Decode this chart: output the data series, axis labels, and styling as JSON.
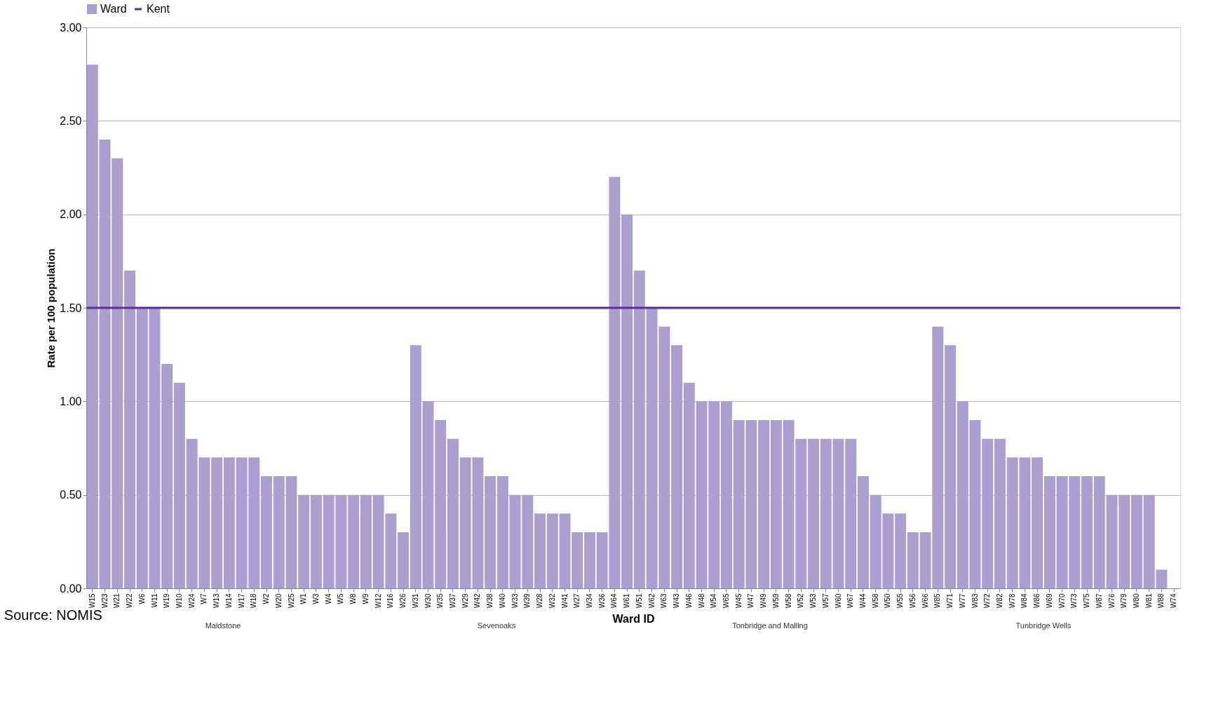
{
  "chart_data": {
    "type": "bar",
    "xlabel": "Ward ID",
    "ylabel": "Rate per 100 population",
    "categories": [
      "W15",
      "W23",
      "W21",
      "W22",
      "W6",
      "W11",
      "W19",
      "W10",
      "W24",
      "W7",
      "W13",
      "W14",
      "W17",
      "W18",
      "W2",
      "W20",
      "W25",
      "W1",
      "W3",
      "W4",
      "W5",
      "W8",
      "W9",
      "W12",
      "W16",
      "W26",
      "W31",
      "W30",
      "W35",
      "W37",
      "W29",
      "W42",
      "W38",
      "W40",
      "W33",
      "W39",
      "W28",
      "W32",
      "W41",
      "W27",
      "W34",
      "W36",
      "W64",
      "W61",
      "W51",
      "W62",
      "W63",
      "W43",
      "W46",
      "W48",
      "W54",
      "W65",
      "W45",
      "W47",
      "W49",
      "W59",
      "W58",
      "W52",
      "W53",
      "W57",
      "W60",
      "W67",
      "W44",
      "W58",
      "W50",
      "W55",
      "W56",
      "W66",
      "W85",
      "W71",
      "W77",
      "W83",
      "W72",
      "W82",
      "W78",
      "W84",
      "W86",
      "W69",
      "W70",
      "W73",
      "W75",
      "W87",
      "W76",
      "W79",
      "W80",
      "W81",
      "W88",
      "W74"
    ],
    "series": [
      {
        "name": "Ward",
        "color": "#ab9fd0",
        "values": [
          2.8,
          2.4,
          2.3,
          1.7,
          1.5,
          1.5,
          1.2,
          1.1,
          0.8,
          0.7,
          0.7,
          0.7,
          0.7,
          0.7,
          0.6,
          0.6,
          0.6,
          0.5,
          0.5,
          0.5,
          0.5,
          0.5,
          0.5,
          0.5,
          0.4,
          0.3,
          1.3,
          1.0,
          0.9,
          0.8,
          0.7,
          0.7,
          0.6,
          0.6,
          0.5,
          0.5,
          0.4,
          0.4,
          0.4,
          0.3,
          0.3,
          0.3,
          2.2,
          2.0,
          1.7,
          1.5,
          1.4,
          1.3,
          1.1,
          1.0,
          1.0,
          1.0,
          0.9,
          0.9,
          0.9,
          0.9,
          0.9,
          0.8,
          0.8,
          0.8,
          0.8,
          0.8,
          0.6,
          0.5,
          0.4,
          0.4,
          0.3,
          0.3,
          1.4,
          1.3,
          1.0,
          0.9,
          0.8,
          0.8,
          0.7,
          0.7,
          0.7,
          0.6,
          0.6,
          0.6,
          0.6,
          0.6,
          0.5,
          0.5,
          0.5,
          0.5,
          0.1,
          0
        ]
      }
    ],
    "ref_lines": [
      {
        "axis": "y",
        "value": 1.5,
        "label": "Kent",
        "color": "#5a2ca0",
        "line_style": "solid"
      }
    ],
    "ylim": [
      0,
      3
    ],
    "yticks": [
      {
        "value": 0,
        "label": "0.00"
      },
      {
        "value": 0.5,
        "label": "0.50"
      },
      {
        "value": 1,
        "label": "1.00"
      },
      {
        "value": 1.5,
        "label": "1.50"
      },
      {
        "value": 2,
        "label": "2.00"
      },
      {
        "value": 2.5,
        "label": "2.50"
      },
      {
        "value": 3,
        "label": "3.00"
      }
    ],
    "grid": "y",
    "legend": "top",
    "annotations": [
      "Maidstone",
      "Sevenoaks",
      "Tonbridge and Malling",
      "Tunbridge Wells",
      "Source: NOMIS"
    ]
  }
}
